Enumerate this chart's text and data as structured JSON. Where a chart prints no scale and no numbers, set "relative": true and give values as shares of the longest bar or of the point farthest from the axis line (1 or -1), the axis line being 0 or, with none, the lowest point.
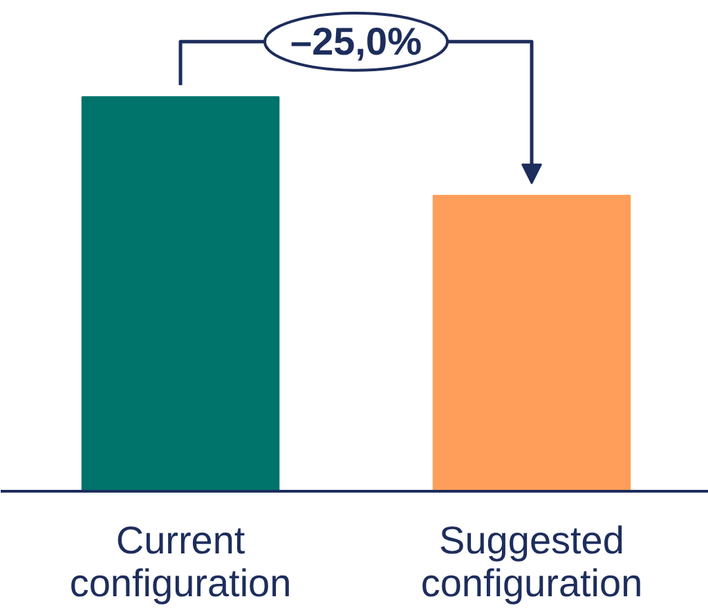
{
  "chart_data": {
    "type": "bar",
    "categories": [
      "Current configuration",
      "Suggested configuration"
    ],
    "values": [
      1,
      0.75
    ],
    "colors": [
      "#00736b",
      "#ff9e5a"
    ],
    "relative": true,
    "annotations": [
      "–25,0%"
    ]
  }
}
